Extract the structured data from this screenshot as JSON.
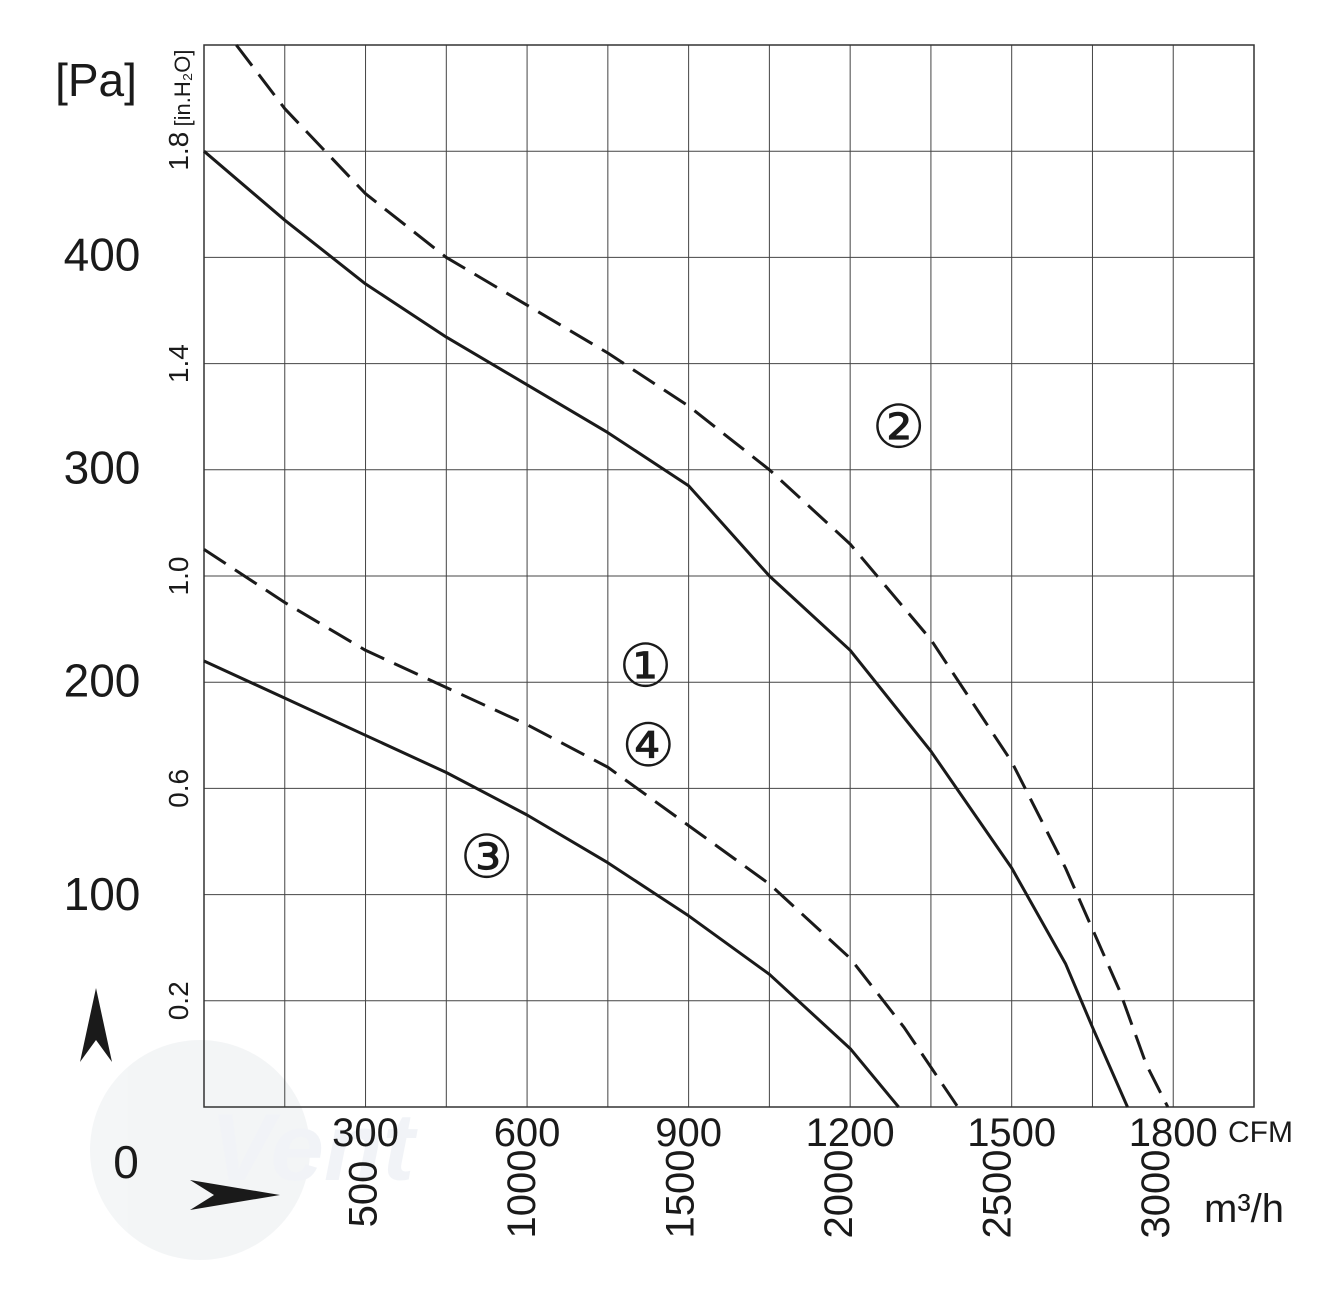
{
  "chart_data": {
    "type": "line",
    "y_unit_pa": "[Pa]",
    "y_unit_inh2o": "[in.H₂O]",
    "x_unit_cfm": "CFM",
    "x_unit_m3h": "m³/h",
    "origin_label": "0",
    "pa_ticks": [
      {
        "label": "100",
        "value": 100
      },
      {
        "label": "200",
        "value": 200
      },
      {
        "label": "300",
        "value": 300
      },
      {
        "label": "400",
        "value": 400
      }
    ],
    "inh2o_ticks": [
      {
        "label": "0.2",
        "value": 0.2
      },
      {
        "label": "0.6",
        "value": 0.6
      },
      {
        "label": "1.0",
        "value": 1.0
      },
      {
        "label": "1.4",
        "value": 1.4
      },
      {
        "label": "1.8",
        "value": 1.8
      }
    ],
    "cfm_ticks": [
      {
        "label": "300",
        "value": 300
      },
      {
        "label": "600",
        "value": 600
      },
      {
        "label": "900",
        "value": 900
      },
      {
        "label": "1200",
        "value": 1200
      },
      {
        "label": "1500",
        "value": 1500
      },
      {
        "label": "1800",
        "value": 1800
      }
    ],
    "m3h_ticks": [
      {
        "label": "500",
        "value": 500
      },
      {
        "label": "1000",
        "value": 1000
      },
      {
        "label": "1500",
        "value": 1500
      },
      {
        "label": "2000",
        "value": 2000
      },
      {
        "label": "2500",
        "value": 2500
      },
      {
        "label": "3000",
        "value": 3000
      }
    ],
    "x_range_cfm": [
      0,
      1950
    ],
    "y_range_inh2o": [
      0,
      2.0
    ],
    "grid": true,
    "watermark": "Vent",
    "series": [
      {
        "name": "①",
        "dashed": false,
        "label_at": [
          820,
          0.83
        ],
        "points": [
          [
            0,
            1.8
          ],
          [
            150,
            1.67
          ],
          [
            300,
            1.55
          ],
          [
            450,
            1.45
          ],
          [
            600,
            1.36
          ],
          [
            750,
            1.27
          ],
          [
            900,
            1.17
          ],
          [
            1050,
            1.0
          ],
          [
            1200,
            0.86
          ],
          [
            1350,
            0.67
          ],
          [
            1500,
            0.45
          ],
          [
            1600,
            0.27
          ],
          [
            1650,
            0.15
          ],
          [
            1715,
            0.0
          ]
        ]
      },
      {
        "name": "②",
        "dashed": true,
        "label_at": [
          1290,
          1.28
        ],
        "points": [
          [
            60,
            2.0
          ],
          [
            150,
            1.88
          ],
          [
            300,
            1.72
          ],
          [
            450,
            1.6
          ],
          [
            600,
            1.51
          ],
          [
            750,
            1.42
          ],
          [
            900,
            1.32
          ],
          [
            1050,
            1.2
          ],
          [
            1200,
            1.06
          ],
          [
            1350,
            0.88
          ],
          [
            1500,
            0.65
          ],
          [
            1600,
            0.45
          ],
          [
            1700,
            0.22
          ],
          [
            1750,
            0.08
          ],
          [
            1790,
            0.0
          ]
        ]
      },
      {
        "name": "③",
        "dashed": false,
        "label_at": [
          525,
          0.47
        ],
        "points": [
          [
            0,
            0.84
          ],
          [
            150,
            0.77
          ],
          [
            300,
            0.7
          ],
          [
            450,
            0.63
          ],
          [
            600,
            0.55
          ],
          [
            750,
            0.46
          ],
          [
            900,
            0.36
          ],
          [
            1050,
            0.25
          ],
          [
            1200,
            0.11
          ],
          [
            1290,
            0.0
          ]
        ]
      },
      {
        "name": "④",
        "dashed": true,
        "label_at": [
          825,
          0.68
        ],
        "points": [
          [
            0,
            1.05
          ],
          [
            150,
            0.95
          ],
          [
            300,
            0.86
          ],
          [
            450,
            0.79
          ],
          [
            600,
            0.72
          ],
          [
            750,
            0.64
          ],
          [
            900,
            0.53
          ],
          [
            1050,
            0.42
          ],
          [
            1200,
            0.28
          ],
          [
            1300,
            0.15
          ],
          [
            1400,
            0.0
          ]
        ]
      }
    ]
  }
}
